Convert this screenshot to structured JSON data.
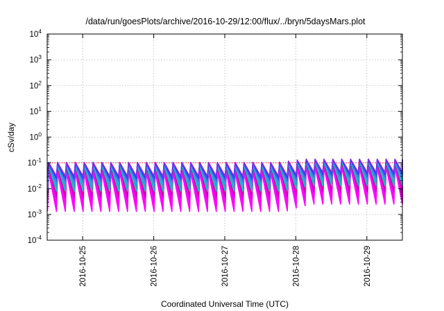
{
  "chart_data": {
    "type": "line",
    "title": "/data/run/goesPlots/archive/2016-10-29/12:00/flux/../bryn/5daysMars.plot",
    "xlabel": "Coordinated Universal Time (UTC)",
    "ylabel": "cSv/day",
    "yscale": "log",
    "ylim": [
      0.0001,
      10000
    ],
    "y_ticks": [
      {
        "base": "10",
        "exp": "-4",
        "value": 0.0001
      },
      {
        "base": "10",
        "exp": "-3",
        "value": 0.001
      },
      {
        "base": "10",
        "exp": "-2",
        "value": 0.01
      },
      {
        "base": "10",
        "exp": "-1",
        "value": 0.1
      },
      {
        "base": "10",
        "exp": "0",
        "value": 1
      },
      {
        "base": "10",
        "exp": "1",
        "value": 10
      },
      {
        "base": "10",
        "exp": "2",
        "value": 100
      },
      {
        "base": "10",
        "exp": "3",
        "value": 1000
      },
      {
        "base": "10",
        "exp": "4",
        "value": 10000
      }
    ],
    "xlim": [
      "2016-10-24T12:00",
      "2016-10-29T12:00"
    ],
    "x_ticks": [
      "2016-10-25",
      "2016-10-26",
      "2016-10-27",
      "2016-10-28",
      "2016-10-29"
    ],
    "grid": true,
    "reference_line": {
      "value": 0.1,
      "color": "#ff0000",
      "style": "dotted"
    },
    "sawtooth": {
      "period_hours": 3,
      "first_peak": "2016-10-24T12:30",
      "peak_rise_start": "2016-10-27T18:00",
      "peak_rise_end": "2016-10-28T03:00"
    },
    "series": [
      {
        "color": "#ff00ff",
        "peak_low": 0.045,
        "peak_high": 0.07,
        "trough_low": 0.0013,
        "trough_high": 0.0025
      },
      {
        "color": "#ff00ff",
        "peak_low": 0.05,
        "peak_high": 0.075,
        "trough_low": 0.0016,
        "trough_high": 0.003
      },
      {
        "color": "#ff00ff",
        "peak_low": 0.055,
        "peak_high": 0.08,
        "trough_low": 0.002,
        "trough_high": 0.0036
      },
      {
        "color": "#ff00ff",
        "peak_low": 0.06,
        "peak_high": 0.085,
        "trough_low": 0.0026,
        "trough_high": 0.0045
      },
      {
        "color": "#ff00ff",
        "peak_low": 0.065,
        "peak_high": 0.09,
        "trough_low": 0.0034,
        "trough_high": 0.0058
      },
      {
        "color": "#cc00cc",
        "peak_low": 0.07,
        "peak_high": 0.1,
        "trough_low": 0.0045,
        "trough_high": 0.0075
      },
      {
        "color": "#c71585",
        "peak_low": 0.075,
        "peak_high": 0.11,
        "trough_low": 0.006,
        "trough_high": 0.01
      },
      {
        "color": "#00cccc",
        "peak_low": 0.08,
        "peak_high": 0.115,
        "trough_low": 0.008,
        "trough_high": 0.013
      },
      {
        "color": "#20b2aa",
        "peak_low": 0.085,
        "peak_high": 0.12,
        "trough_low": 0.011,
        "trough_high": 0.017
      },
      {
        "color": "#3399ff",
        "peak_low": 0.09,
        "peak_high": 0.125,
        "trough_low": 0.014,
        "trough_high": 0.022
      },
      {
        "color": "#4169e1",
        "peak_low": 0.095,
        "peak_high": 0.13,
        "trough_low": 0.019,
        "trough_high": 0.028
      },
      {
        "color": "#1e3cff",
        "peak_low": 0.1,
        "peak_high": 0.135,
        "trough_low": 0.025,
        "trough_high": 0.036
      },
      {
        "color": "#8a2be2",
        "peak_low": 0.105,
        "peak_high": 0.14,
        "trough_low": 0.03,
        "trough_high": 0.042
      }
    ]
  }
}
